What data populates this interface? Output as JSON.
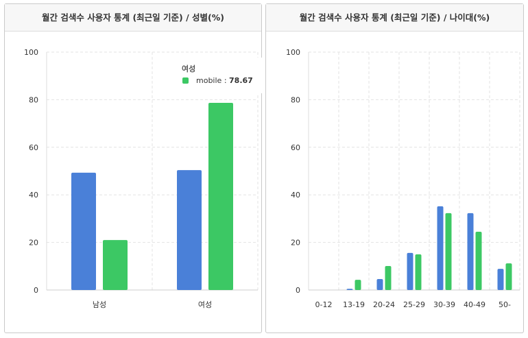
{
  "chart_data": [
    {
      "type": "bar",
      "title": "월간 검색수 사용자 통계 (최근일 기준) / 성별(%)",
      "categories": [
        "남성",
        "여성"
      ],
      "ylim": [
        0,
        100
      ],
      "yticks": [
        0,
        20,
        40,
        60,
        80,
        100
      ],
      "grid": true,
      "series": [
        {
          "values": [
            49.3,
            50.4
          ],
          "color": "#4a80d8"
        },
        {
          "name": "mobile",
          "values": [
            21.0,
            78.67
          ],
          "color": "#3cc864"
        }
      ],
      "tooltip": {
        "category": "여성",
        "series": "mobile",
        "sep": ":",
        "value": "78.67"
      }
    },
    {
      "type": "bar",
      "title": "월간 검색수 사용자 통계 (최근일 기준) / 나이대(%)",
      "categories": [
        "0-12",
        "13-19",
        "20-24",
        "25-29",
        "30-39",
        "40-49",
        "50-"
      ],
      "ylim": [
        0,
        100
      ],
      "yticks": [
        0,
        20,
        40,
        60,
        80,
        100
      ],
      "grid": true,
      "series": [
        {
          "values": [
            0,
            0.5,
            4.6,
            15.6,
            35.2,
            32.3,
            8.9
          ],
          "color": "#4a80d8"
        },
        {
          "values": [
            0,
            4.3,
            10.1,
            15.0,
            32.3,
            24.5,
            11.2
          ],
          "color": "#3cc864"
        }
      ]
    }
  ]
}
